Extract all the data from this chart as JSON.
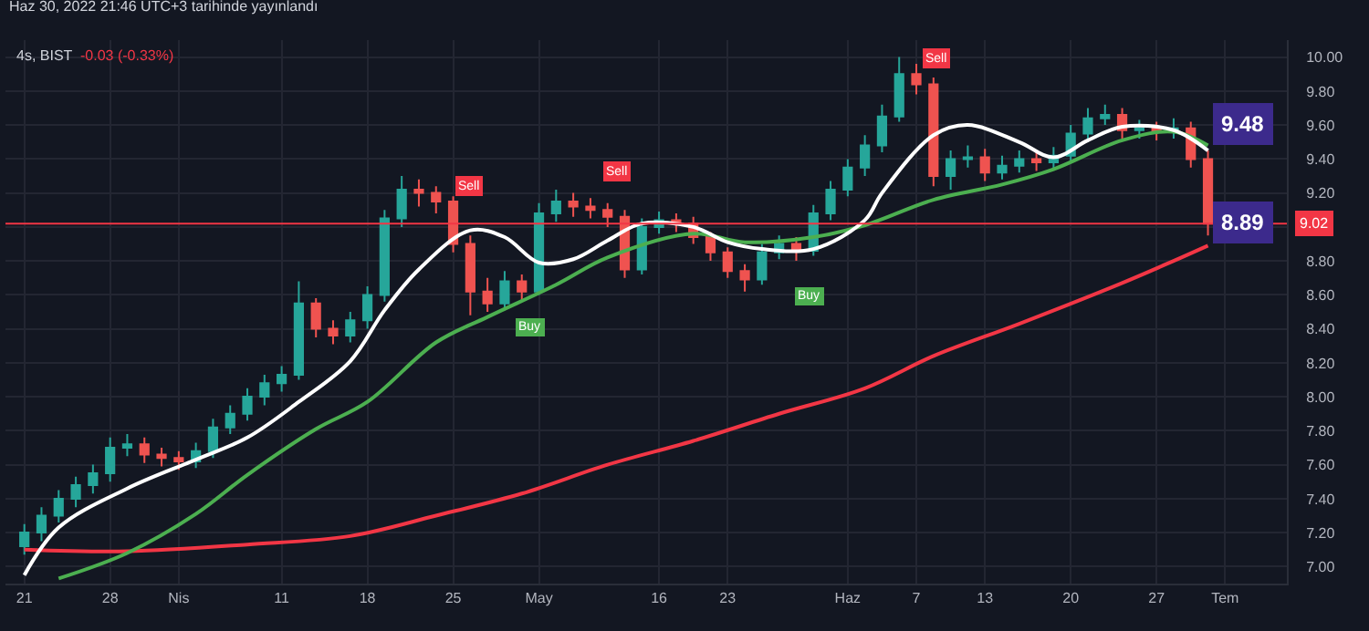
{
  "chart_data": {
    "type": "candlestick",
    "title": "4s, BIST",
    "subtitle": "-0.03 (-0.33%)",
    "annotations": [
      "Haz 30, 2022 21:46 UTC+3 tarihinde yayınlandı",
      "9.48",
      "8.89",
      "Sell",
      "Sell",
      "Sell",
      "Buy",
      "Buy"
    ],
    "categories": [
      "21",
      null,
      null,
      null,
      null,
      "28",
      null,
      null,
      null,
      "Nis",
      null,
      null,
      null,
      null,
      null,
      "11",
      null,
      null,
      null,
      null,
      "18",
      null,
      null,
      null,
      null,
      "25",
      null,
      null,
      null,
      null,
      "May",
      null,
      null,
      null,
      null,
      null,
      null,
      "16",
      null,
      null,
      null,
      "23",
      null,
      null,
      null,
      null,
      null,
      null,
      "Haz",
      null,
      null,
      null,
      "7",
      null,
      null,
      null,
      "13",
      null,
      null,
      null,
      null,
      "20",
      null,
      null,
      null,
      null,
      "27",
      null,
      null,
      null,
      "Tem"
    ],
    "ylim": [
      6.9,
      10.1
    ],
    "yticks": [
      {
        "value": 7,
        "label": "7.00"
      },
      {
        "value": 7.2,
        "label": "7.20"
      },
      {
        "value": 7.4,
        "label": "7.40"
      },
      {
        "value": 7.6,
        "label": "7.60"
      },
      {
        "value": 7.8,
        "label": "7.80"
      },
      {
        "value": 8,
        "label": "8.00"
      },
      {
        "value": 8.2,
        "label": "8.20"
      },
      {
        "value": 8.4,
        "label": "8.40"
      },
      {
        "value": 8.6,
        "label": "8.60"
      },
      {
        "value": 8.8,
        "label": "8.80"
      },
      {
        "value": 9,
        "label": null
      },
      {
        "value": 9.2,
        "label": "9.20"
      },
      {
        "value": 9.4,
        "label": "9.40"
      },
      {
        "value": 9.6,
        "label": "9.60"
      },
      {
        "value": 9.8,
        "label": "9.80"
      },
      {
        "value": 10,
        "label": "10.00"
      }
    ],
    "grid": true,
    "ref_lines": [
      {
        "axis": "y",
        "value": 9.02,
        "label": "9.02",
        "color": "#f23645"
      }
    ],
    "series": [
      {
        "type": "line",
        "color": "#f23645",
        "values": [
          7.1,
          null,
          null,
          null,
          null,
          null,
          7.09,
          null,
          null,
          null,
          null,
          null,
          null,
          7.13,
          null,
          null,
          null,
          null,
          null,
          7.18,
          null,
          null,
          null,
          null,
          7.3,
          null,
          null,
          null,
          null,
          7.43,
          null,
          null,
          null,
          null,
          7.6,
          null,
          null,
          null,
          null,
          7.74,
          null,
          null,
          null,
          null,
          7.9,
          null,
          null,
          null,
          null,
          8.05,
          null,
          null,
          null,
          8.24,
          null,
          null,
          null,
          null,
          8.43,
          null,
          null,
          null,
          null,
          null,
          8.67,
          null,
          null,
          8.8,
          null,
          8.89,
          null
        ]
      },
      {
        "type": "line",
        "color": "#4caf50",
        "values": [
          null,
          null,
          6.93,
          null,
          null,
          null,
          7.08,
          null,
          null,
          null,
          7.31,
          null,
          null,
          7.54,
          null,
          null,
          null,
          7.81,
          null,
          null,
          7.97,
          null,
          null,
          null,
          8.32,
          null,
          null,
          8.47,
          null,
          null,
          null,
          8.66,
          null,
          null,
          8.82,
          null,
          null,
          null,
          null,
          8.96,
          null,
          null,
          8.91,
          null,
          null,
          null,
          8.94,
          null,
          null,
          9.01,
          null,
          null,
          null,
          9.16,
          null,
          null,
          null,
          9.25,
          null,
          null,
          9.34,
          null,
          null,
          null,
          9.51,
          null,
          null,
          9.56,
          null,
          9.48,
          null
        ]
      },
      {
        "type": "line",
        "color": "#ffffff",
        "values": [
          6.95,
          null,
          7.23,
          null,
          null,
          null,
          7.46,
          null,
          null,
          null,
          7.63,
          null,
          null,
          7.76,
          null,
          null,
          7.97,
          null,
          null,
          8.21,
          null,
          8.51,
          null,
          8.75,
          null,
          null,
          8.98,
          null,
          8.94,
          null,
          8.79,
          null,
          8.81,
          null,
          8.92,
          null,
          9.02,
          null,
          null,
          9.0,
          null,
          8.91,
          null,
          8.87,
          null,
          null,
          8.87,
          null,
          null,
          9.04,
          9.2,
          null,
          null,
          9.54,
          null,
          9.6,
          null,
          null,
          9.5,
          null,
          9.41,
          null,
          9.51,
          null,
          9.59,
          null,
          null,
          9.57,
          null,
          9.45,
          null
        ]
      },
      {
        "ohlc": [
          [
            7.12,
            7.25,
            7.07,
            7.2
          ],
          [
            7.2,
            7.35,
            7.15,
            7.3
          ],
          [
            7.3,
            7.45,
            7.26,
            7.4
          ],
          [
            7.4,
            7.53,
            7.35,
            7.48
          ],
          [
            7.48,
            7.6,
            7.43,
            7.55
          ],
          [
            7.55,
            7.76,
            7.5,
            7.7
          ],
          [
            7.7,
            7.78,
            7.65,
            7.72
          ],
          [
            7.72,
            7.76,
            7.61,
            7.66
          ],
          [
            7.66,
            7.7,
            7.59,
            7.64
          ],
          [
            7.64,
            7.68,
            7.57,
            7.62
          ],
          [
            7.62,
            7.73,
            7.58,
            7.68
          ],
          [
            7.68,
            7.87,
            7.64,
            7.82
          ],
          [
            7.82,
            7.95,
            7.78,
            7.9
          ],
          [
            7.9,
            8.05,
            7.86,
            8.0
          ],
          [
            8.0,
            8.13,
            7.95,
            8.08
          ],
          [
            8.08,
            8.18,
            8.03,
            8.13
          ],
          [
            8.13,
            8.68,
            8.1,
            8.55
          ],
          [
            8.55,
            8.58,
            8.35,
            8.4
          ],
          [
            8.4,
            8.45,
            8.31,
            8.36
          ],
          [
            8.36,
            8.5,
            8.32,
            8.45
          ],
          [
            8.45,
            8.65,
            8.4,
            8.6
          ],
          [
            8.6,
            9.1,
            8.56,
            9.05
          ],
          [
            9.05,
            9.3,
            9.0,
            9.22
          ],
          [
            9.22,
            9.28,
            9.12,
            9.2
          ],
          [
            9.2,
            9.24,
            9.08,
            9.15
          ],
          [
            9.15,
            9.18,
            8.85,
            8.9
          ],
          [
            8.9,
            8.95,
            8.48,
            8.62
          ],
          [
            8.62,
            8.7,
            8.5,
            8.55
          ],
          [
            8.55,
            8.74,
            8.51,
            8.68
          ],
          [
            8.68,
            8.72,
            8.56,
            8.62
          ],
          [
            8.62,
            9.14,
            8.6,
            9.08
          ],
          [
            9.08,
            9.22,
            9.03,
            9.15
          ],
          [
            9.15,
            9.2,
            9.06,
            9.12
          ],
          [
            9.12,
            9.17,
            9.05,
            9.1
          ],
          [
            9.1,
            9.14,
            9.0,
            9.06
          ],
          [
            9.06,
            9.1,
            8.7,
            8.75
          ],
          [
            8.75,
            9.05,
            8.72,
            9.0
          ],
          [
            9.0,
            9.09,
            8.96,
            9.04
          ],
          [
            9.04,
            9.08,
            8.97,
            9.02
          ],
          [
            9.02,
            9.06,
            8.9,
            8.94
          ],
          [
            8.94,
            8.97,
            8.8,
            8.85
          ],
          [
            8.85,
            8.88,
            8.7,
            8.74
          ],
          [
            8.74,
            8.78,
            8.62,
            8.69
          ],
          [
            8.69,
            8.9,
            8.66,
            8.85
          ],
          [
            8.85,
            8.95,
            8.81,
            8.9
          ],
          [
            8.9,
            8.94,
            8.8,
            8.86
          ],
          [
            8.86,
            9.13,
            8.83,
            9.08
          ],
          [
            9.08,
            9.27,
            9.04,
            9.22
          ],
          [
            9.22,
            9.4,
            9.18,
            9.35
          ],
          [
            9.35,
            9.54,
            9.3,
            9.48
          ],
          [
            9.48,
            9.72,
            9.44,
            9.65
          ],
          [
            9.65,
            10.0,
            9.62,
            9.9
          ],
          [
            9.9,
            9.96,
            9.78,
            9.84
          ],
          [
            9.84,
            9.88,
            9.24,
            9.3
          ],
          [
            9.3,
            9.45,
            9.22,
            9.4
          ],
          [
            9.4,
            9.48,
            9.35,
            9.41
          ],
          [
            9.41,
            9.46,
            9.27,
            9.32
          ],
          [
            9.32,
            9.42,
            9.28,
            9.36
          ],
          [
            9.36,
            9.45,
            9.32,
            9.4
          ],
          [
            9.4,
            9.44,
            9.33,
            9.38
          ],
          [
            9.38,
            9.47,
            9.34,
            9.42
          ],
          [
            9.42,
            9.6,
            9.38,
            9.55
          ],
          [
            9.55,
            9.7,
            9.5,
            9.64
          ],
          [
            9.64,
            9.72,
            9.6,
            9.66
          ],
          [
            9.66,
            9.7,
            9.52,
            9.57
          ],
          [
            9.57,
            9.63,
            9.52,
            9.58
          ],
          [
            9.58,
            9.62,
            9.51,
            9.56
          ],
          [
            9.56,
            9.64,
            9.52,
            9.58
          ],
          [
            9.58,
            9.62,
            9.35,
            9.4
          ],
          [
            9.4,
            9.45,
            8.95,
            9.02
          ],
          null
        ],
        "colors": [
          "#26a69a",
          "#26a69a",
          "#26a69a",
          "#26a69a",
          "#26a69a",
          "#26a69a",
          "#26a69a",
          "#ef5350",
          "#ef5350",
          "#ef5350",
          "#26a69a",
          "#26a69a",
          "#26a69a",
          "#26a69a",
          "#26a69a",
          "#26a69a",
          "#26a69a",
          "#ef5350",
          "#ef5350",
          "#26a69a",
          "#26a69a",
          "#26a69a",
          "#26a69a",
          "#ef5350",
          "#ef5350",
          "#ef5350",
          "#ef5350",
          "#ef5350",
          "#26a69a",
          "#ef5350",
          "#26a69a",
          "#26a69a",
          "#ef5350",
          "#ef5350",
          "#ef5350",
          "#ef5350",
          "#26a69a",
          "#26a69a",
          "#ef5350",
          "#ef5350",
          "#ef5350",
          "#ef5350",
          "#ef5350",
          "#26a69a",
          "#26a69a",
          "#ef5350",
          "#26a69a",
          "#26a69a",
          "#26a69a",
          "#26a69a",
          "#26a69a",
          "#26a69a",
          "#ef5350",
          "#ef5350",
          "#26a69a",
          "#26a69a",
          "#ef5350",
          "#26a69a",
          "#26a69a",
          "#ef5350",
          "#26a69a",
          "#26a69a",
          "#26a69a",
          "#26a69a",
          "#ef5350",
          "#26a69a",
          "#ef5350",
          "#26a69a",
          "#ef5350",
          "#ef5350",
          null
        ]
      }
    ]
  }
}
